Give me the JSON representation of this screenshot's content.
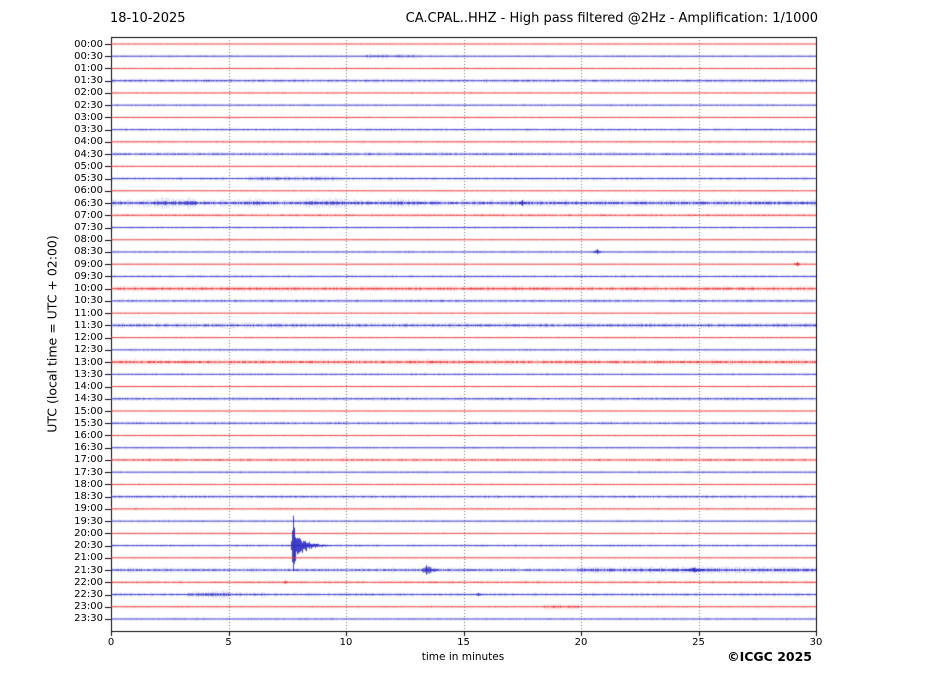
{
  "header": {
    "date": "18-10-2025",
    "title": "CA.CPAL..HHZ - High pass filtered @2Hz - Amplification: 1/1000"
  },
  "footer": {
    "copyright": "©ICGC 2025"
  },
  "chart_data": {
    "type": "line",
    "title": "CA.CPAL..HHZ - High pass filtered @2Hz - Amplification: 1/1000",
    "date": "18-10-2025",
    "xlabel": "time in minutes",
    "ylabel": "UTC (local time = UTC + 02:00)",
    "xlim": [
      0,
      30
    ],
    "x_ticks": [
      0,
      5,
      10,
      15,
      20,
      25,
      30
    ],
    "grid": "vertical-dotted-every-5-min",
    "legend": "none",
    "trace_colors": {
      "hour_rows": "#e62e2e",
      "half_hour_rows": "#2c2cc4"
    },
    "rows": [
      {
        "time": "00:00",
        "color": "red",
        "noise": 0.6
      },
      {
        "time": "00:30",
        "color": "blue",
        "noise": 0.7,
        "segments": [
          [
            10.8,
            13.2,
            1.5
          ]
        ]
      },
      {
        "time": "01:00",
        "color": "red",
        "noise": 0.6
      },
      {
        "time": "01:30",
        "color": "blue",
        "noise": 0.95
      },
      {
        "time": "02:00",
        "color": "red",
        "noise": 0.65
      },
      {
        "time": "02:30",
        "color": "blue",
        "noise": 0.7
      },
      {
        "time": "03:00",
        "color": "red",
        "noise": 0.6
      },
      {
        "time": "03:30",
        "color": "blue",
        "noise": 0.75
      },
      {
        "time": "04:00",
        "color": "red",
        "noise": 0.7
      },
      {
        "time": "04:30",
        "color": "blue",
        "noise": 0.95
      },
      {
        "time": "05:00",
        "color": "red",
        "noise": 0.6
      },
      {
        "time": "05:30",
        "color": "blue",
        "noise": 0.8,
        "segments": [
          [
            5.8,
            9.6,
            1.5
          ]
        ]
      },
      {
        "time": "06:00",
        "color": "red",
        "noise": 0.6
      },
      {
        "time": "06:30",
        "color": "blue",
        "noise": 1.5,
        "segments": [
          [
            1.8,
            3.6,
            1.5
          ],
          [
            5.8,
            6.5,
            1.3
          ],
          [
            8.2,
            10.0,
            1.4
          ],
          [
            11.7,
            13.3,
            1.25
          ]
        ],
        "events": [
          {
            "m": 17.5,
            "a": 3,
            "w": 0.12
          }
        ]
      },
      {
        "time": "07:00",
        "color": "red",
        "noise": 0.85
      },
      {
        "time": "07:30",
        "color": "blue",
        "noise": 0.7
      },
      {
        "time": "08:00",
        "color": "red",
        "noise": 0.6
      },
      {
        "time": "08:30",
        "color": "blue",
        "noise": 0.7,
        "events": [
          {
            "m": 20.7,
            "a": 2.6,
            "w": 0.15
          }
        ]
      },
      {
        "time": "09:00",
        "color": "red",
        "noise": 0.6,
        "events": [
          {
            "m": 29.2,
            "a": 2.4,
            "w": 0.12
          }
        ]
      },
      {
        "time": "09:30",
        "color": "blue",
        "noise": 0.75
      },
      {
        "time": "10:00",
        "color": "red",
        "noise": 1.3
      },
      {
        "time": "10:30",
        "color": "blue",
        "noise": 0.9
      },
      {
        "time": "11:00",
        "color": "red",
        "noise": 0.6
      },
      {
        "time": "11:30",
        "color": "blue",
        "noise": 1.25
      },
      {
        "time": "12:00",
        "color": "red",
        "noise": 0.6
      },
      {
        "time": "12:30",
        "color": "blue",
        "noise": 0.7
      },
      {
        "time": "13:00",
        "color": "red",
        "noise": 1.3
      },
      {
        "time": "13:30",
        "color": "blue",
        "noise": 0.7
      },
      {
        "time": "14:00",
        "color": "red",
        "noise": 0.6
      },
      {
        "time": "14:30",
        "color": "blue",
        "noise": 0.9
      },
      {
        "time": "15:00",
        "color": "red",
        "noise": 0.6
      },
      {
        "time": "15:30",
        "color": "blue",
        "noise": 0.85
      },
      {
        "time": "16:00",
        "color": "red",
        "noise": 0.6
      },
      {
        "time": "16:30",
        "color": "blue",
        "noise": 0.7
      },
      {
        "time": "17:00",
        "color": "red",
        "noise": 0.95
      },
      {
        "time": "17:30",
        "color": "blue",
        "noise": 0.7
      },
      {
        "time": "18:00",
        "color": "red",
        "noise": 0.6
      },
      {
        "time": "18:30",
        "color": "blue",
        "noise": 0.9
      },
      {
        "time": "19:00",
        "color": "red",
        "noise": 0.7
      },
      {
        "time": "19:30",
        "color": "blue",
        "noise": 0.7
      },
      {
        "time": "20:00",
        "color": "red",
        "noise": 0.6
      },
      {
        "time": "20:30",
        "color": "blue",
        "noise": 0.75,
        "events": [
          {
            "m": 7.75,
            "a": 30,
            "w": 0.1,
            "coda": 1.6
          }
        ]
      },
      {
        "time": "21:00",
        "color": "red",
        "noise": 0.6
      },
      {
        "time": "21:30",
        "color": "blue",
        "noise": 1.05,
        "segments": [
          [
            19.8,
            30,
            1.5
          ]
        ],
        "events": [
          {
            "m": 13.4,
            "a": 5,
            "w": 0.15,
            "coda": 0.35
          },
          {
            "m": 24.8,
            "a": 2.4,
            "w": 0.55
          }
        ]
      },
      {
        "time": "22:00",
        "color": "red",
        "noise": 0.8,
        "events": [
          {
            "m": 7.4,
            "a": 1.6,
            "w": 0.1
          }
        ]
      },
      {
        "time": "22:30",
        "color": "blue",
        "noise": 0.85,
        "segments": [
          [
            3.2,
            5.0,
            1.9
          ],
          [
            5.0,
            6.6,
            1.35
          ],
          [
            10.4,
            11.6,
            1.2
          ]
        ],
        "events": [
          {
            "m": 15.6,
            "a": 1.6,
            "w": 0.12
          }
        ]
      },
      {
        "time": "23:00",
        "color": "red",
        "noise": 0.7,
        "segments": [
          [
            18.4,
            19.9,
            1.9
          ]
        ]
      },
      {
        "time": "23:30",
        "color": "blue",
        "noise": 0.7
      }
    ]
  }
}
